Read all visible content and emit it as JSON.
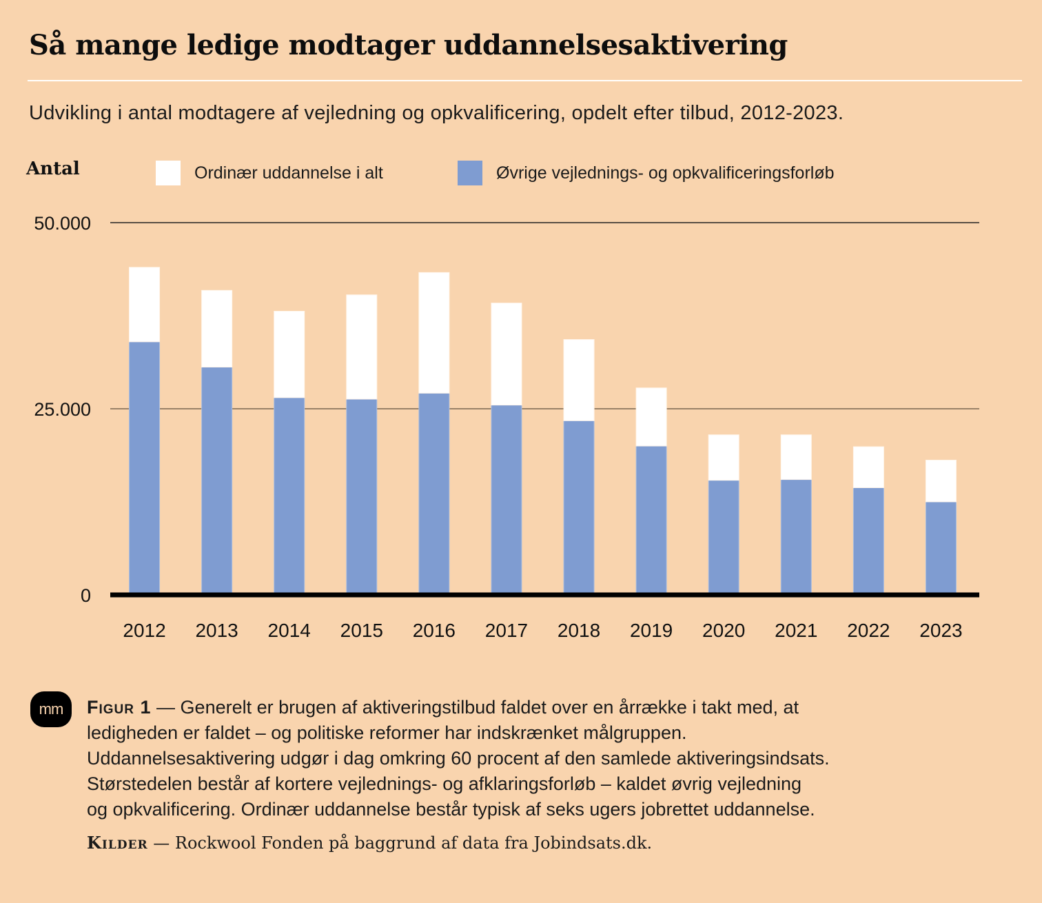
{
  "header": {
    "title": "Så mange ledige modtager uddannelsesaktivering",
    "subtitle": "Udvikling i antal modtagere af vejledning og opkvalificering, opdelt efter tilbud, 2012-2023."
  },
  "legend": {
    "ylabel": "Antal",
    "items": [
      {
        "label": "Ordinær uddannelse i alt",
        "color": "#ffffff"
      },
      {
        "label": "Øvrige vejlednings- og opkvalificeringsforløb",
        "color": "#7f9cd1"
      }
    ]
  },
  "chart_data": {
    "type": "bar",
    "stacked": true,
    "title": "Så mange ledige modtager uddannelsesaktivering",
    "subtitle": "Udvikling i antal modtagere af vejledning og opkvalificering, opdelt efter tilbud, 2012-2023.",
    "xlabel": "",
    "ylabel": "Antal",
    "categories": [
      "2012",
      "2013",
      "2014",
      "2015",
      "2016",
      "2017",
      "2018",
      "2019",
      "2020",
      "2021",
      "2022",
      "2023"
    ],
    "series": [
      {
        "name": "Øvrige vejlednings- og opkvalificeringsforløb",
        "color": "#7f9cd1",
        "values": [
          34000,
          30600,
          26500,
          26300,
          27100,
          25500,
          23400,
          20000,
          15400,
          15500,
          14400,
          12500
        ]
      },
      {
        "name": "Ordinær uddannelse i alt",
        "color": "#ffffff",
        "values": [
          10000,
          10300,
          11600,
          14000,
          16200,
          13700,
          10900,
          7800,
          6100,
          6000,
          5500,
          5600
        ]
      }
    ],
    "ylim": [
      0,
      50000
    ],
    "yticks": [
      0,
      25000,
      50000
    ],
    "ytick_labels": [
      "0",
      "25.000",
      "50.000"
    ],
    "grid": true,
    "legend_position": "top"
  },
  "footer": {
    "logo_text": "mm",
    "figure_label": "Figur 1",
    "dash": "—",
    "caption_lines": [
      "Generelt er brugen af aktiveringstilbud faldet over en årrække i takt med, at",
      "ledigheden er faldet – og politiske reformer har indskrænket målgruppen.",
      "Uddannelsesaktivering udgør i dag omkring 60 procent af den samlede aktiveringsindsats.",
      "Størstedelen består af kortere vejlednings- og afklaringsforløb – kaldet øvrig vejledning",
      "og opkvalificering. Ordinær uddannelse består typisk af seks ugers jobrettet uddannelse."
    ],
    "sources_label": "Kilder",
    "sources_text": "Rockwool Fonden på baggrund af data fra Jobindsats.dk."
  }
}
